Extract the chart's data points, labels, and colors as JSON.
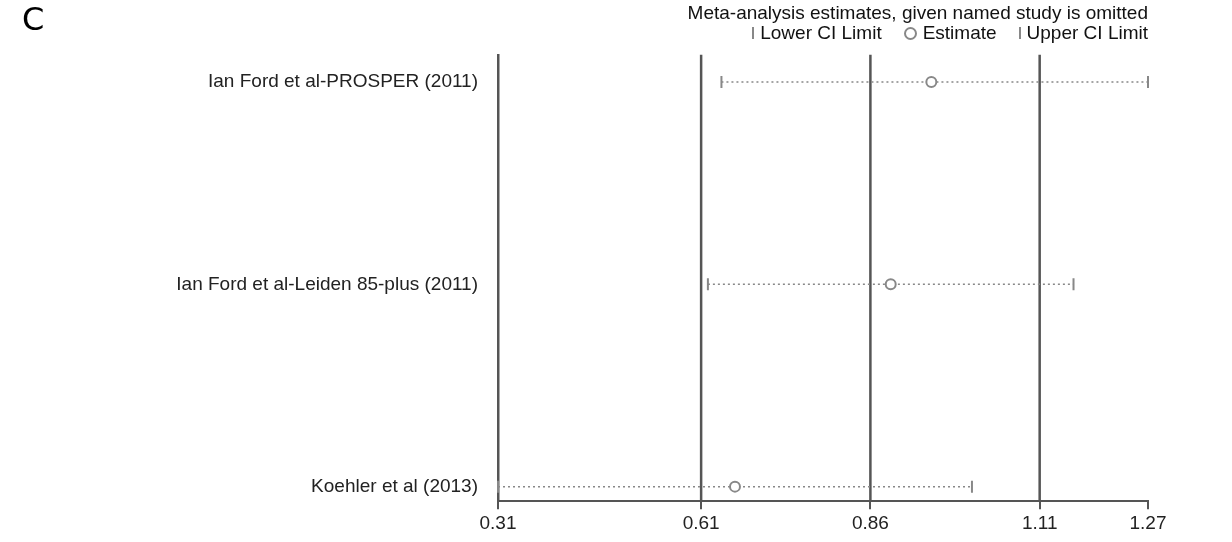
{
  "chart_data": {
    "type": "scatter",
    "orientation": "horizontal",
    "title": "Meta-analysis estimates, given named study is omitted",
    "annotations": [
      "C",
      "Lower CI Limit",
      "Upper CI Limit"
    ],
    "categories": [
      "Ian Ford et al-PROSPER (2011)",
      "Ian Ford et al-Leiden 85-plus (2011)",
      "Koehler et al (2013)"
    ],
    "xlim": [
      0.31,
      1.27
    ],
    "xticks": [
      0.31,
      0.61,
      0.86,
      1.11,
      1.27
    ],
    "grid": false,
    "legend": "top right",
    "ref_lines": [
      {
        "axis": "x",
        "value": 0.61,
        "color": "#555555"
      },
      {
        "axis": "x",
        "value": 0.86,
        "color": "#555555"
      },
      {
        "axis": "x",
        "value": 1.11,
        "color": "#555555"
      }
    ],
    "series": [
      {
        "name": "Estimate",
        "color": "#888888",
        "marker": "circle",
        "line_style": "dotted",
        "values": [
          0.95,
          0.89,
          0.66
        ],
        "errors": [
          [
            0.64,
            1.27
          ],
          [
            0.62,
            1.16
          ],
          [
            0.31,
            1.01
          ]
        ]
      }
    ]
  }
}
